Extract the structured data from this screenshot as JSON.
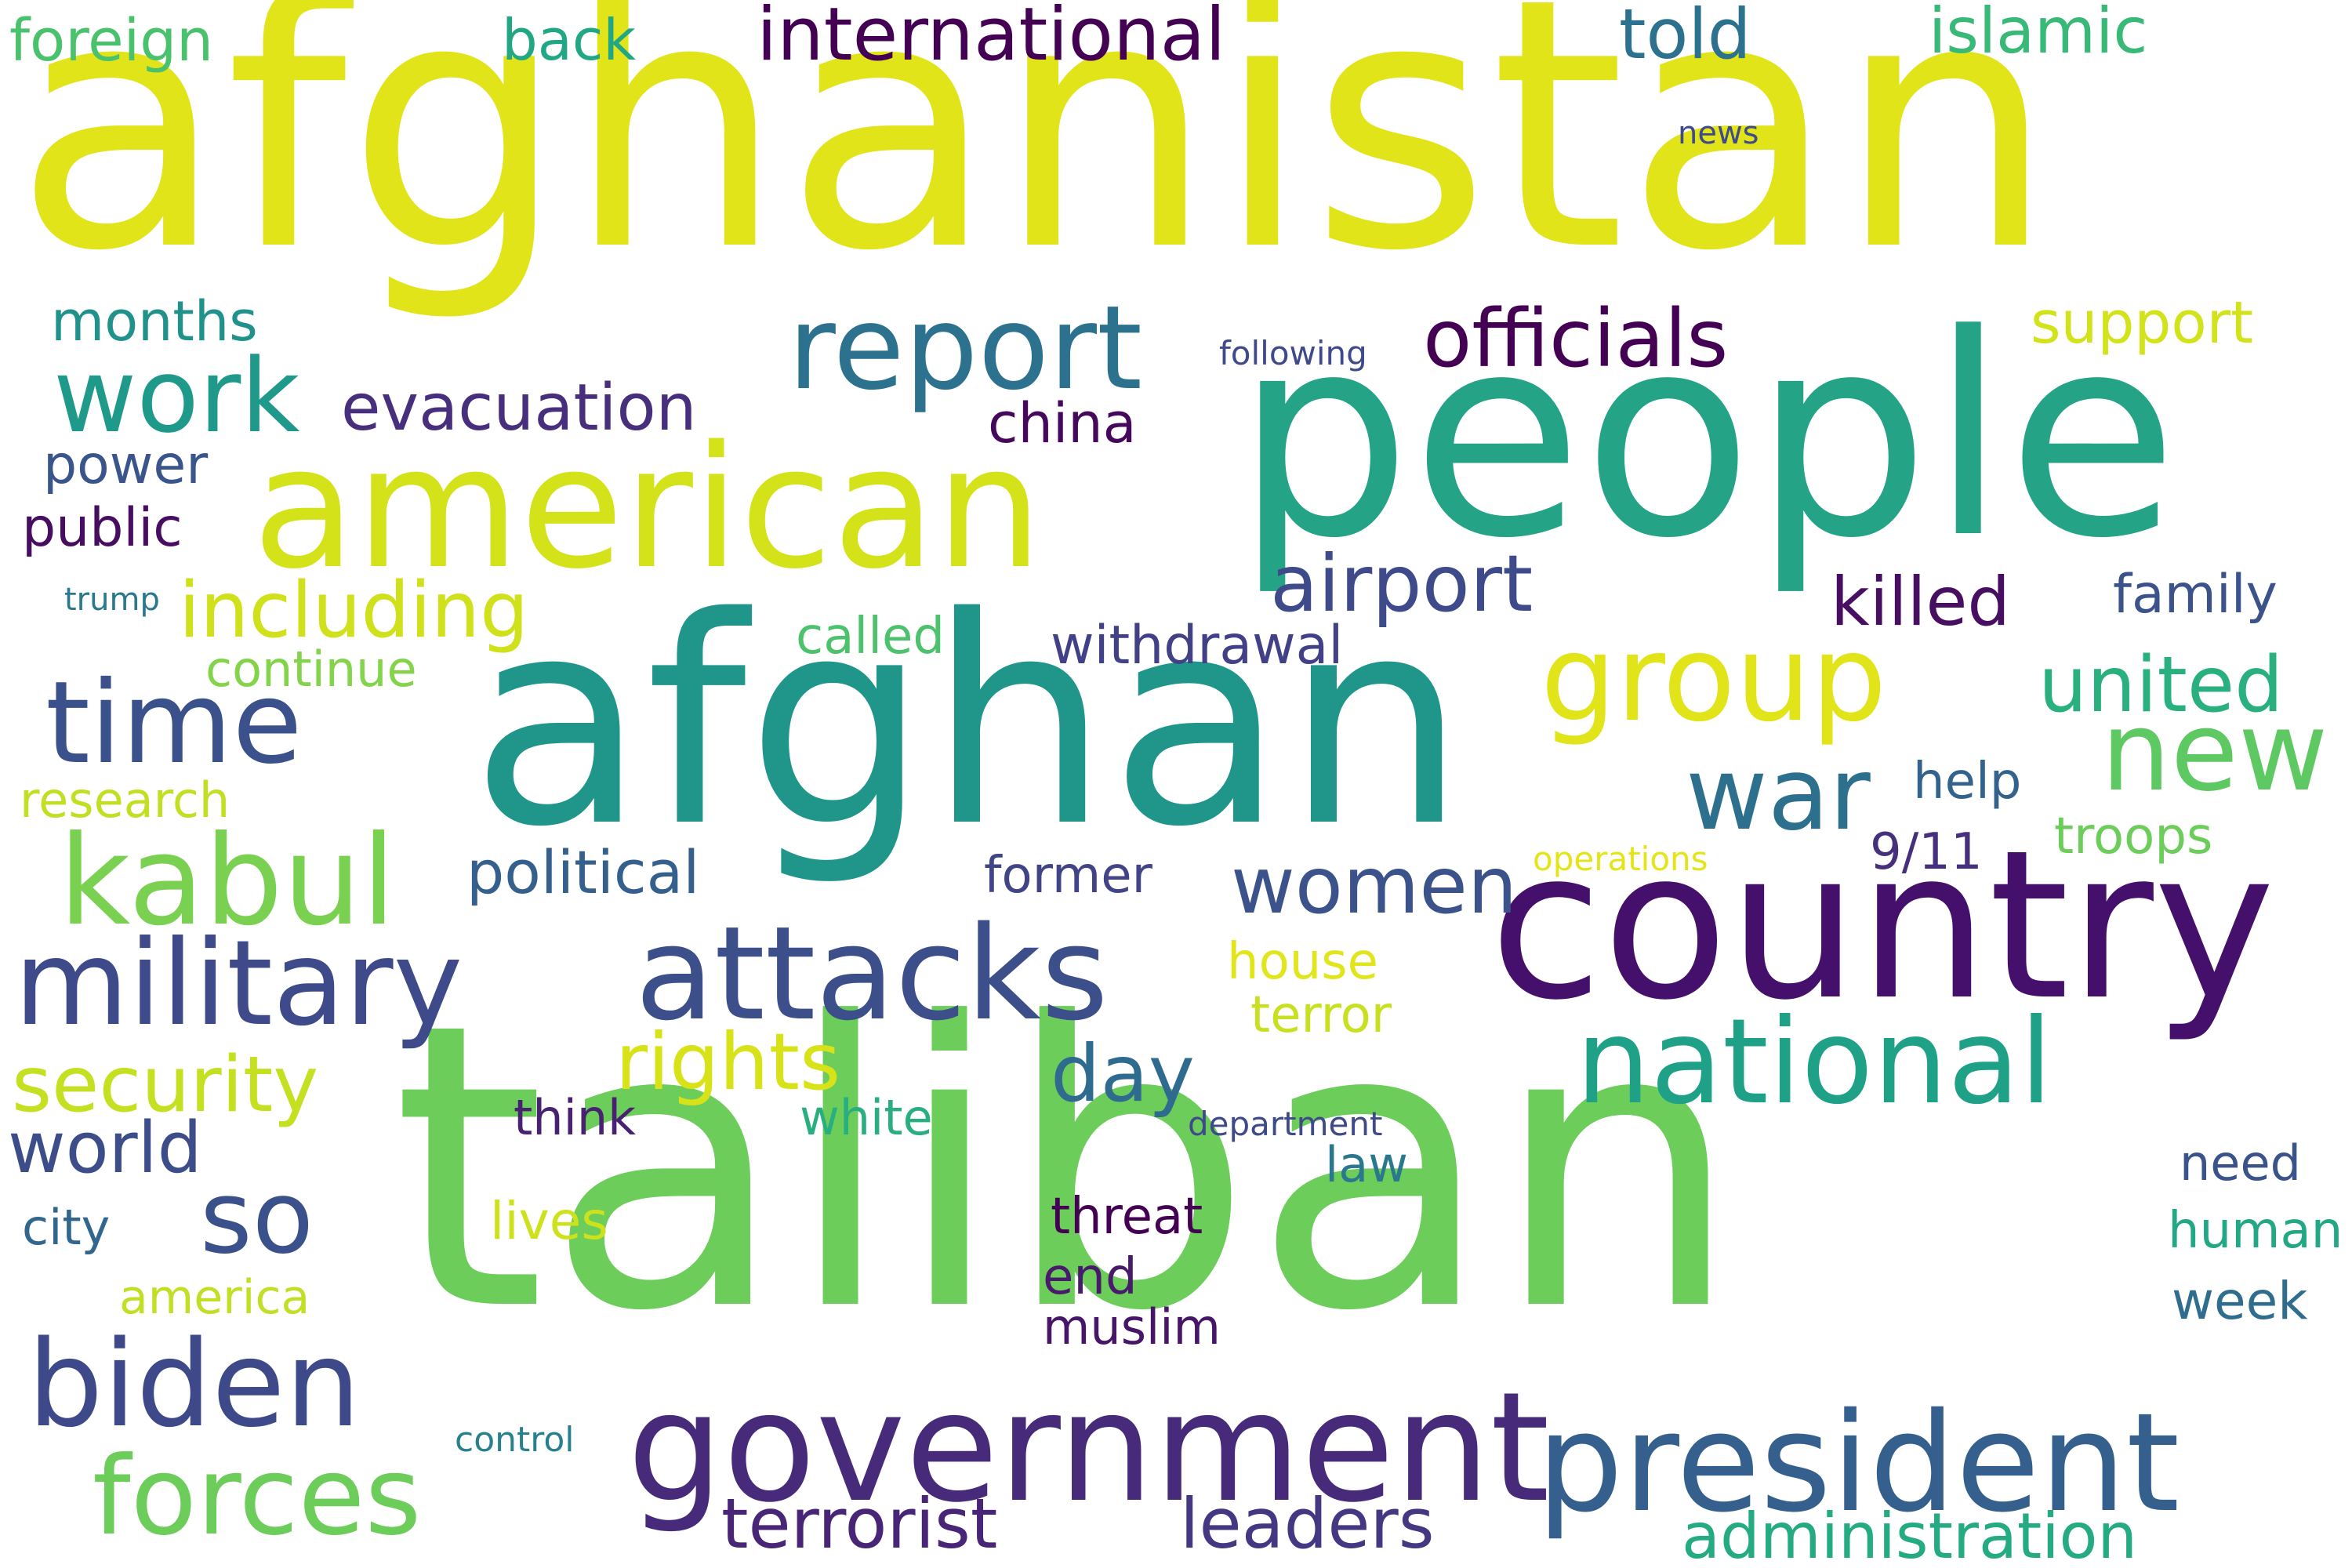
{
  "words": [
    {
      "text": "afghanistan",
      "color": "#e0e418"
    },
    {
      "text": "taliban",
      "color": "#6ccd5a"
    },
    {
      "text": "afghan",
      "color": "#20968b"
    },
    {
      "text": "people",
      "color": "#24a386"
    },
    {
      "text": "country",
      "color": "#44106c"
    },
    {
      "text": "american",
      "color": "#d4e21a"
    },
    {
      "text": "government",
      "color": "#472a7a"
    },
    {
      "text": "president",
      "color": "#35608d"
    },
    {
      "text": "attacks",
      "color": "#3c4f8a"
    },
    {
      "text": "military",
      "color": "#3e4a89"
    },
    {
      "text": "report",
      "color": "#2c728e"
    },
    {
      "text": "national",
      "color": "#1fa187"
    },
    {
      "text": "kabul",
      "color": "#7ad151"
    },
    {
      "text": "group",
      "color": "#e0e418"
    },
    {
      "text": "biden",
      "color": "#3e4989"
    },
    {
      "text": "time",
      "color": "#3b518b"
    },
    {
      "text": "forces",
      "color": "#6ccd5a"
    },
    {
      "text": "work",
      "color": "#1f9a8a"
    },
    {
      "text": "war",
      "color": "#2d708e"
    },
    {
      "text": "new",
      "color": "#5ec962"
    },
    {
      "text": "so",
      "color": "#3b518b"
    },
    {
      "text": "officials",
      "color": "#440154"
    },
    {
      "text": "international",
      "color": "#440154"
    },
    {
      "text": "including",
      "color": "#d0e11c"
    },
    {
      "text": "airport",
      "color": "#3e4a89"
    },
    {
      "text": "security",
      "color": "#c5e021"
    },
    {
      "text": "united",
      "color": "#2ab07f"
    },
    {
      "text": "women",
      "color": "#3b528b"
    },
    {
      "text": "day",
      "color": "#2f6b8e"
    },
    {
      "text": "rights",
      "color": "#d8e219"
    },
    {
      "text": "world",
      "color": "#3d4d8a"
    },
    {
      "text": "terrorist",
      "color": "#482576"
    },
    {
      "text": "leaders",
      "color": "#453781"
    },
    {
      "text": "administration",
      "color": "#25ab82"
    },
    {
      "text": "evacuation",
      "color": "#472f7d"
    },
    {
      "text": "killed",
      "color": "#470e61"
    },
    {
      "text": "told",
      "color": "#2c728e"
    },
    {
      "text": "islamic",
      "color": "#38b977"
    },
    {
      "text": "political",
      "color": "#355f8d"
    },
    {
      "text": "support",
      "color": "#d2e21b"
    },
    {
      "text": "foreign",
      "color": "#4ac16d"
    },
    {
      "text": "back",
      "color": "#22a785"
    },
    {
      "text": "months",
      "color": "#21918c"
    },
    {
      "text": "china",
      "color": "#46085c"
    },
    {
      "text": "power",
      "color": "#39558c"
    },
    {
      "text": "public",
      "color": "#470d60"
    },
    {
      "text": "withdrawal",
      "color": "#424086"
    },
    {
      "text": "family",
      "color": "#3b528b"
    },
    {
      "text": "continue",
      "color": "#84d44b"
    },
    {
      "text": "called",
      "color": "#4cc26c"
    },
    {
      "text": "help",
      "color": "#33638d"
    },
    {
      "text": "troops",
      "color": "#6ccd5a"
    },
    {
      "text": "former",
      "color": "#414487"
    },
    {
      "text": "9/11",
      "color": "#46307e"
    },
    {
      "text": "research",
      "color": "#c2df23"
    },
    {
      "text": "house",
      "color": "#e1e51b"
    },
    {
      "text": "terror",
      "color": "#c8e020"
    },
    {
      "text": "think",
      "color": "#482173"
    },
    {
      "text": "white",
      "color": "#29af7f"
    },
    {
      "text": "threat",
      "color": "#440154"
    },
    {
      "text": "law",
      "color": "#2a788e"
    },
    {
      "text": "end",
      "color": "#481a6c"
    },
    {
      "text": "muslim",
      "color": "#481668"
    },
    {
      "text": "need",
      "color": "#3a538b"
    },
    {
      "text": "human",
      "color": "#22a884"
    },
    {
      "text": "week",
      "color": "#2f6c8e"
    },
    {
      "text": "lives",
      "color": "#cde11d"
    },
    {
      "text": "city",
      "color": "#31678e"
    },
    {
      "text": "america",
      "color": "#c0df25"
    },
    {
      "text": "control",
      "color": "#27808e"
    },
    {
      "text": "trump",
      "color": "#2a788e"
    },
    {
      "text": "following",
      "color": "#3e4a89"
    },
    {
      "text": "news",
      "color": "#3e4a89"
    },
    {
      "text": "operations",
      "color": "#e5e419"
    },
    {
      "text": "department",
      "color": "#3e4a89"
    }
  ]
}
